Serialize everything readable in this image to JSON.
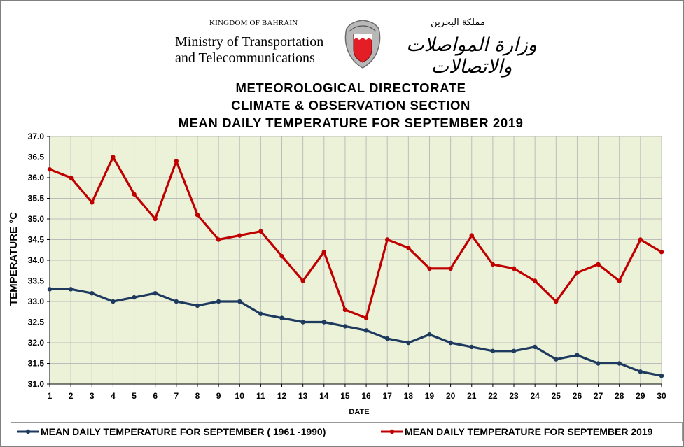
{
  "header": {
    "kingdom": "KINGDOM OF BAHRAIN",
    "ministry_line1": "Ministry of Transportation",
    "ministry_line2": "and Telecommunications",
    "arabic_kingdom": "مملكة البحرين",
    "arabic_ministry": "وزارة المواصلات والاتصالات"
  },
  "chart_data": {
    "type": "line",
    "title_lines": [
      "METEOROLOGICAL DIRECTORATE",
      "CLIMATE & OBSERVATION SECTION",
      "MEAN DAILY TEMPERATURE FOR SEPTEMBER 2019"
    ],
    "xlabel": "DATE",
    "ylabel": "TEMPERATURE °C",
    "x": [
      1,
      2,
      3,
      4,
      5,
      6,
      7,
      8,
      9,
      10,
      11,
      12,
      13,
      14,
      15,
      16,
      17,
      18,
      19,
      20,
      21,
      22,
      23,
      24,
      25,
      26,
      27,
      28,
      29,
      30
    ],
    "ylim": [
      31.0,
      37.0
    ],
    "ytick_step": 0.5,
    "grid": true,
    "legend_position": "bottom",
    "series": [
      {
        "name": "MEAN DAILY TEMPERATURE FOR SEPTEMBER ( 1961 -1990)",
        "color": "#1f3a5f",
        "values": [
          33.3,
          33.3,
          33.2,
          33.0,
          33.1,
          33.2,
          33.0,
          32.9,
          33.0,
          33.0,
          32.7,
          32.6,
          32.5,
          32.5,
          32.4,
          32.3,
          32.1,
          32.0,
          32.2,
          32.0,
          31.9,
          31.8,
          31.8,
          31.9,
          31.6,
          31.7,
          31.5,
          31.5,
          31.3,
          31.2
        ]
      },
      {
        "name": "MEAN DAILY TEMPERATURE FOR SEPTEMBER 2019",
        "color": "#c00000",
        "values": [
          36.2,
          36.0,
          35.4,
          36.5,
          35.6,
          35.0,
          36.4,
          35.1,
          34.5,
          34.6,
          34.7,
          34.1,
          33.5,
          34.2,
          32.8,
          32.6,
          34.5,
          34.3,
          33.8,
          33.8,
          34.6,
          33.9,
          33.8,
          33.5,
          33.0,
          33.7,
          33.9,
          33.5,
          34.5,
          34.2
        ]
      }
    ]
  },
  "colors": {
    "plot_background": "#ecf2d8",
    "grid": "#bcbcbc"
  }
}
